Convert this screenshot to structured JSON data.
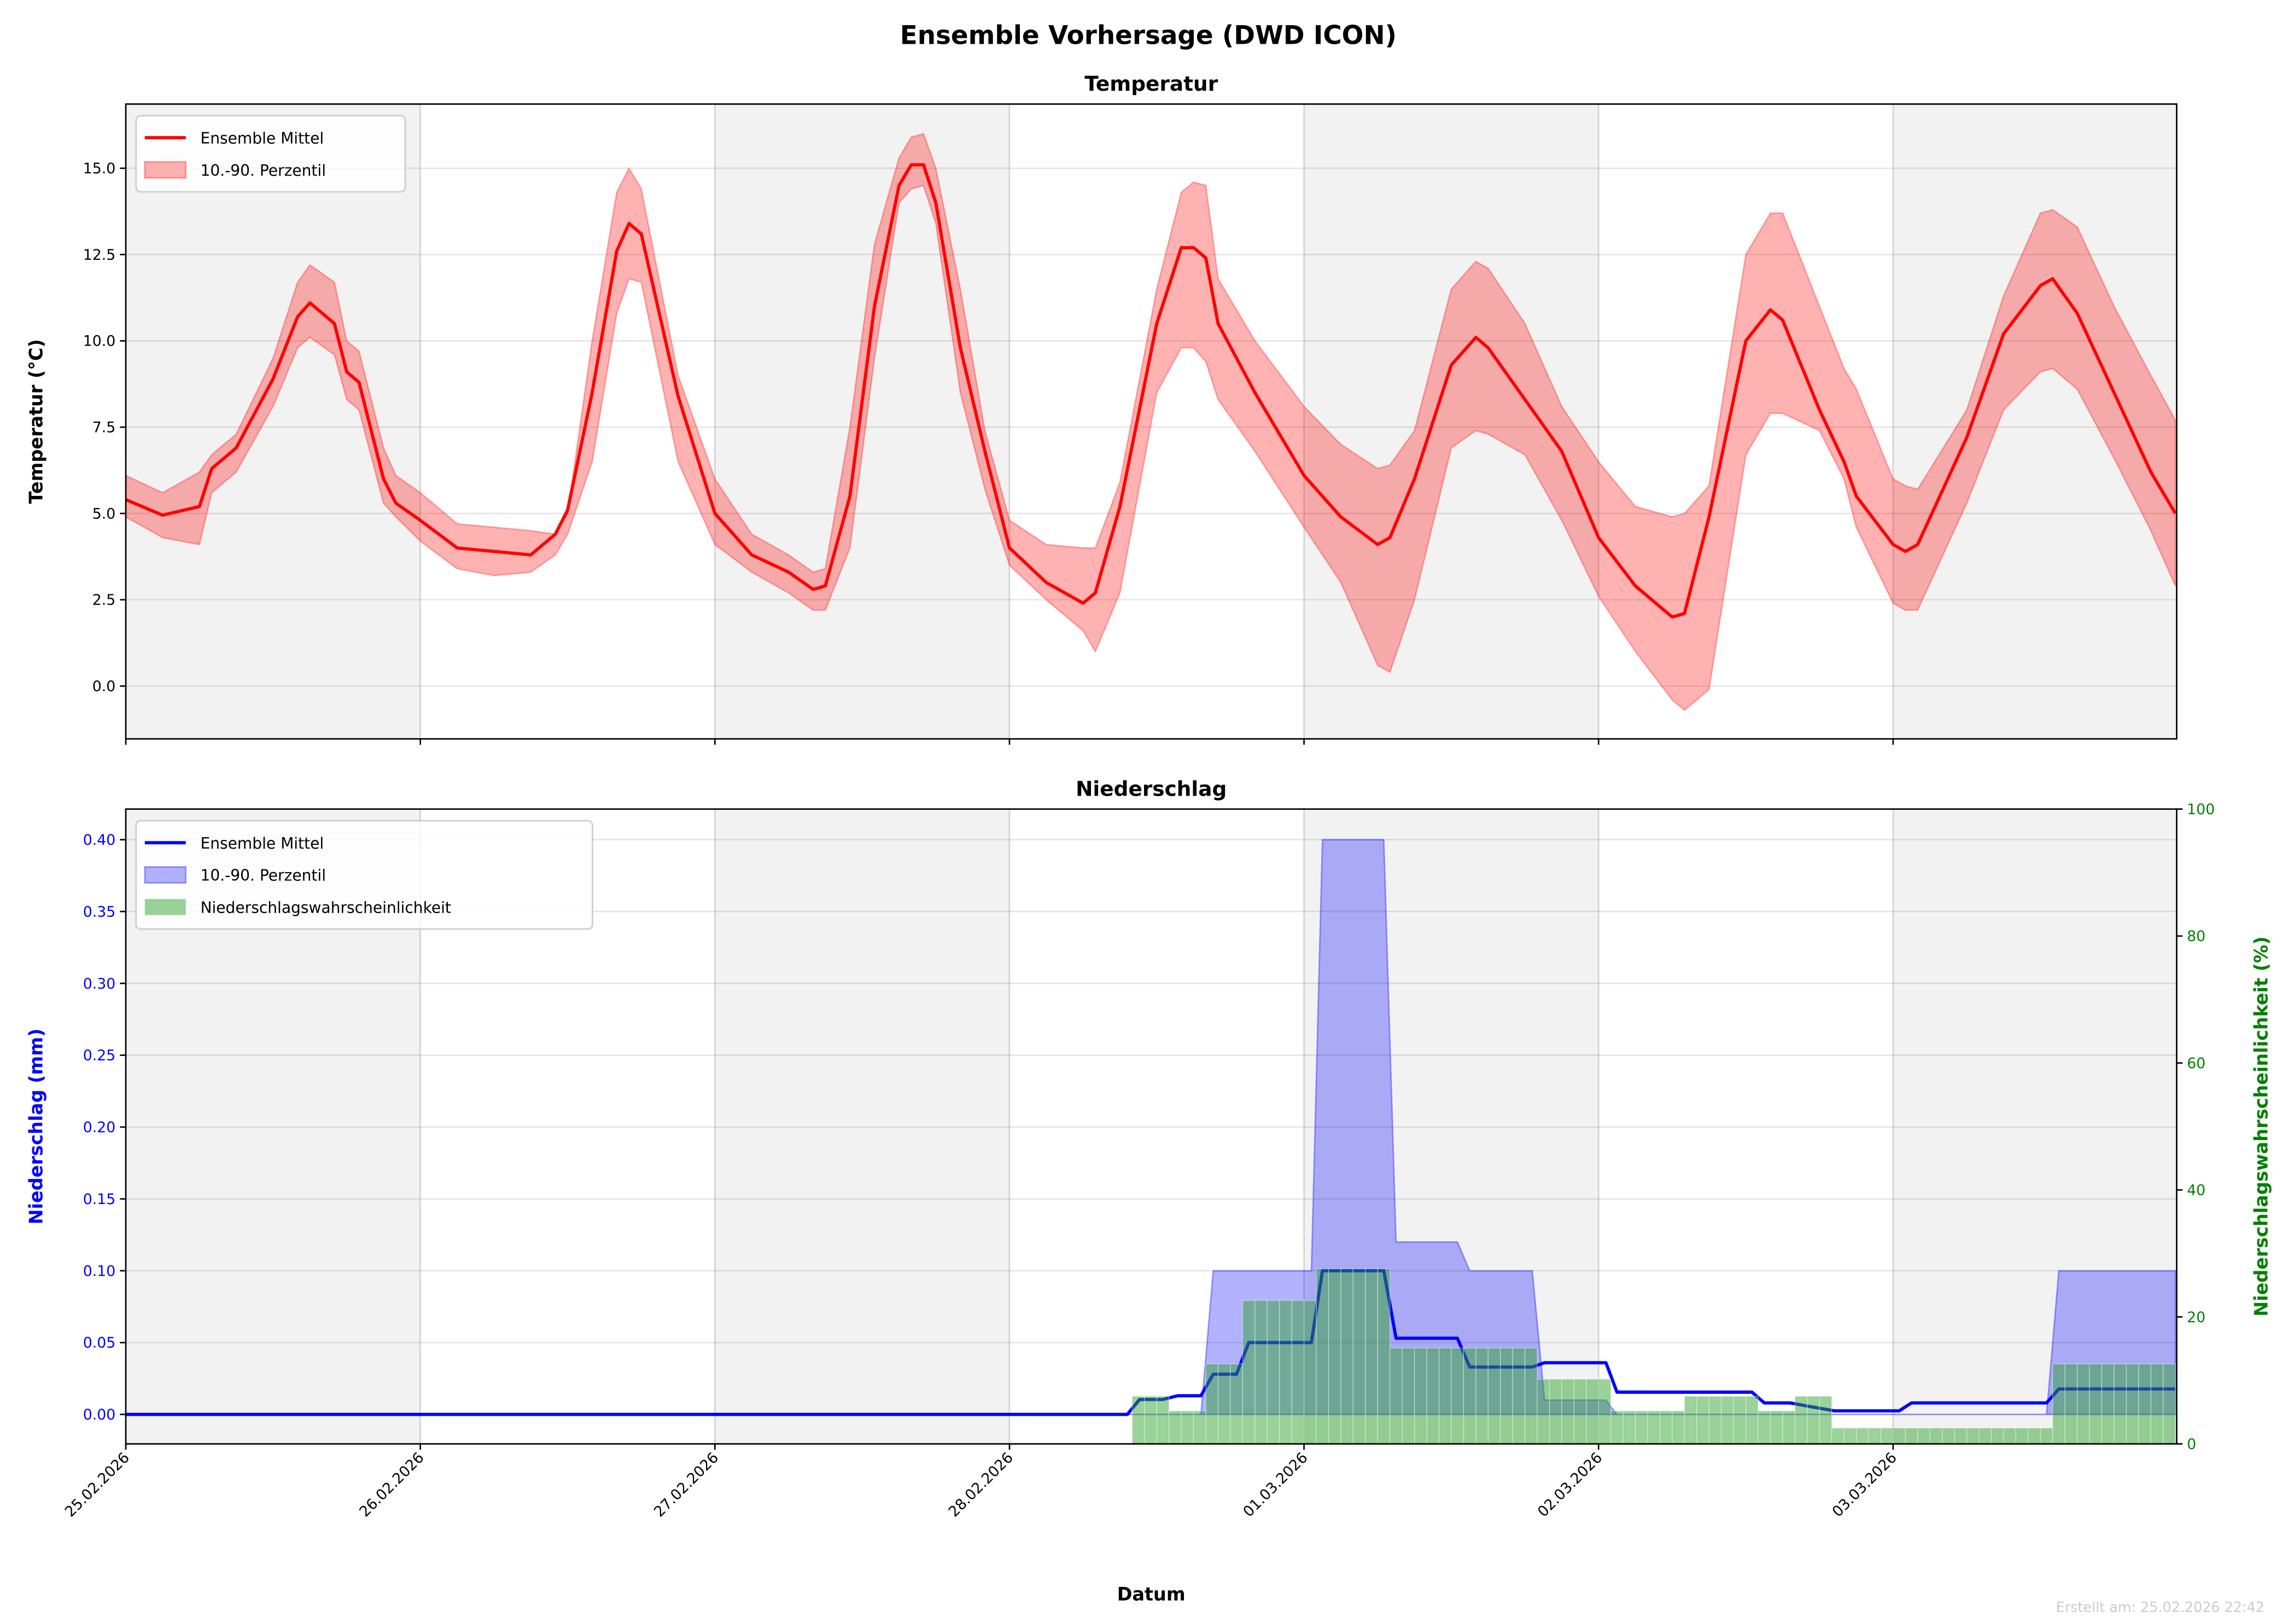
{
  "title": "Ensemble Vorhersage (DWD ICON)",
  "footer": "Erstellt am: 25.02.2026 22:42",
  "x_axis": {
    "label": "Datum",
    "ticks": [
      "25.02.2026",
      "26.02.2026",
      "27.02.2026",
      "28.02.2026",
      "01.03.2026",
      "02.03.2026",
      "03.03.2026"
    ],
    "range_hours": [
      0,
      167
    ],
    "shaded_days": [
      0,
      2,
      4,
      6
    ]
  },
  "colors": {
    "temp": "#ff0000",
    "precip": "#0000ff",
    "prob": "#2ca02c",
    "shade": "#f2f2f2",
    "footer": "#cccccc"
  },
  "chart_data": [
    {
      "type": "line",
      "title": "Temperatur",
      "xlabel": "",
      "ylabel": "Temperatur (°C)",
      "ylim": [
        -1.53,
        16.86
      ],
      "yticks": [
        "0.0",
        "2.5",
        "5.0",
        "7.5",
        "10.0",
        "12.5",
        "15.0"
      ],
      "grid": true,
      "legend": {
        "placement": "top-left",
        "entries": [
          "Ensemble Mittel",
          "10.-90. Perzentil"
        ]
      },
      "x_hours": [
        0,
        3,
        6,
        7,
        9,
        12,
        14,
        15,
        17,
        18,
        19,
        21,
        22,
        24,
        27,
        30,
        33,
        35,
        36,
        38,
        40,
        41,
        42,
        45,
        48,
        51,
        54,
        56,
        57,
        59,
        61,
        63,
        64,
        65,
        66,
        68,
        70,
        72,
        75,
        78,
        79,
        81,
        84,
        86,
        87,
        88,
        89,
        92,
        96,
        99,
        102,
        103,
        105,
        108,
        110,
        111,
        114,
        117,
        120,
        123,
        126,
        127,
        129,
        132,
        134,
        135,
        138,
        140,
        141,
        144,
        145,
        146,
        150,
        153,
        156,
        157,
        159,
        162,
        165,
        167
      ],
      "series": [
        {
          "name": "Ensemble Mittel",
          "values": [
            5.4,
            4.95,
            5.2,
            6.3,
            6.9,
            8.9,
            10.7,
            11.1,
            10.5,
            9.1,
            8.8,
            6.0,
            5.3,
            4.8,
            4.0,
            3.9,
            3.8,
            4.4,
            5.1,
            8.5,
            12.6,
            13.4,
            13.1,
            8.4,
            5.0,
            3.8,
            3.3,
            2.8,
            2.9,
            5.5,
            11.0,
            14.5,
            15.1,
            15.1,
            14.0,
            9.8,
            6.8,
            4.0,
            3.0,
            2.4,
            2.7,
            5.2,
            10.5,
            12.7,
            12.7,
            12.4,
            10.5,
            8.5,
            6.1,
            4.9,
            4.1,
            4.3,
            6.0,
            9.3,
            10.1,
            9.8,
            8.3,
            6.8,
            4.3,
            2.9,
            2.0,
            2.1,
            4.9,
            10.0,
            10.9,
            10.6,
            8.0,
            6.5,
            5.5,
            4.1,
            3.9,
            4.1,
            7.2,
            10.2,
            11.6,
            11.8,
            10.8,
            8.5,
            6.2,
            5.0
          ]
        },
        {
          "name": "P90",
          "values": [
            6.1,
            5.6,
            6.2,
            6.7,
            7.3,
            9.5,
            11.7,
            12.2,
            11.7,
            10.0,
            9.7,
            6.9,
            6.1,
            5.6,
            4.7,
            4.6,
            4.5,
            4.4,
            5.0,
            10.0,
            14.3,
            15.0,
            14.4,
            9.0,
            6.0,
            4.4,
            3.8,
            3.3,
            3.4,
            7.5,
            12.8,
            15.3,
            15.9,
            16.0,
            15.0,
            11.5,
            7.4,
            4.8,
            4.1,
            4.0,
            4.0,
            5.9,
            11.5,
            14.3,
            14.6,
            14.5,
            11.8,
            10.0,
            8.1,
            7.0,
            6.3,
            6.4,
            7.4,
            11.5,
            12.3,
            12.1,
            10.5,
            8.1,
            6.5,
            5.2,
            4.9,
            5.0,
            5.8,
            12.5,
            13.7,
            13.7,
            11.0,
            9.2,
            8.6,
            6.0,
            5.8,
            5.7,
            8.0,
            11.3,
            13.7,
            13.8,
            13.3,
            11.0,
            9.0,
            7.7
          ]
        },
        {
          "name": "P10",
          "values": [
            4.9,
            4.3,
            4.1,
            5.6,
            6.2,
            8.1,
            9.8,
            10.1,
            9.6,
            8.3,
            8.0,
            5.3,
            4.9,
            4.2,
            3.4,
            3.2,
            3.3,
            3.8,
            4.4,
            6.5,
            10.8,
            11.8,
            11.7,
            6.5,
            4.1,
            3.3,
            2.7,
            2.2,
            2.2,
            4.0,
            9.5,
            14.0,
            14.4,
            14.5,
            13.4,
            8.5,
            5.7,
            3.5,
            2.5,
            1.6,
            1.0,
            2.7,
            8.5,
            9.8,
            9.8,
            9.4,
            8.3,
            6.8,
            4.6,
            3.0,
            0.6,
            0.4,
            2.5,
            6.9,
            7.4,
            7.3,
            6.7,
            4.8,
            2.6,
            1.0,
            -0.4,
            -0.7,
            -0.1,
            6.7,
            7.9,
            7.9,
            7.4,
            6.0,
            4.6,
            2.4,
            2.2,
            2.2,
            5.3,
            8.0,
            9.1,
            9.2,
            8.6,
            6.6,
            4.5,
            2.9
          ]
        }
      ]
    },
    {
      "type": "line",
      "title": "Niederschlag",
      "ylabel": "Niederschlag (mm)",
      "ylabel_right": "Niederschlagswahrscheinlichkeit (%)",
      "ylim": [
        -0.0205,
        0.4213
      ],
      "ylim_right": [
        0,
        100
      ],
      "yticks": [
        "0.00",
        "0.05",
        "0.10",
        "0.15",
        "0.20",
        "0.25",
        "0.30",
        "0.35",
        "0.40"
      ],
      "yticks_right": [
        "0",
        "20",
        "40",
        "60",
        "80",
        "100"
      ],
      "grid": true,
      "legend": {
        "placement": "top-left",
        "entries": [
          "Ensemble Mittel",
          "10.-90. Perzentil",
          "Niederschlagswahrscheinlichkeit"
        ]
      },
      "mean": [
        [
          0,
          0
        ],
        [
          81.6,
          0
        ],
        [
          82.6,
          0.0104
        ],
        [
          84.5,
          0.0104
        ],
        [
          85.7,
          0.013
        ],
        [
          87.6,
          0.013
        ],
        [
          88.6,
          0.028
        ],
        [
          90.5,
          0.028
        ],
        [
          91.5,
          0.05
        ],
        [
          96.6,
          0.05
        ],
        [
          97.5,
          0.1
        ],
        [
          102.5,
          0.1
        ],
        [
          103.5,
          0.053
        ],
        [
          108.5,
          0.053
        ],
        [
          109.5,
          0.033
        ],
        [
          114.6,
          0.033
        ],
        [
          115.6,
          0.036
        ],
        [
          120.6,
          0.036
        ],
        [
          121.5,
          0.0155
        ],
        [
          132.5,
          0.0155
        ],
        [
          133.5,
          0.008
        ],
        [
          135.6,
          0.008
        ],
        [
          139.2,
          0.0025
        ],
        [
          144.5,
          0.0025
        ],
        [
          145.5,
          0.008
        ],
        [
          156.5,
          0.008
        ],
        [
          157.5,
          0.0177
        ],
        [
          167,
          0.0177
        ]
      ],
      "p90": [
        [
          0,
          0
        ],
        [
          87.6,
          0
        ],
        [
          88.6,
          0.1
        ],
        [
          96.6,
          0.1
        ],
        [
          97.5,
          0.4
        ],
        [
          102.5,
          0.4
        ],
        [
          103.5,
          0.12
        ],
        [
          108.5,
          0.12
        ],
        [
          109.5,
          0.1
        ],
        [
          114.6,
          0.1
        ],
        [
          115.6,
          0.01
        ],
        [
          120.6,
          0.01
        ],
        [
          121.5,
          0
        ],
        [
          156.5,
          0
        ],
        [
          157.5,
          0.1
        ],
        [
          167,
          0.1
        ]
      ],
      "p10": [
        [
          0,
          0
        ],
        [
          167,
          0
        ]
      ],
      "probability_segments": [
        [
          82,
          85,
          7.5
        ],
        [
          85,
          88,
          5.2
        ],
        [
          88,
          91,
          12.6
        ],
        [
          91,
          97,
          22.6
        ],
        [
          97,
          103,
          27.6
        ],
        [
          103,
          115,
          15.1
        ],
        [
          115,
          121,
          10.2
        ],
        [
          121,
          127,
          5.2
        ],
        [
          127,
          133,
          7.5
        ],
        [
          133,
          136,
          5.2
        ],
        [
          136,
          139,
          7.5
        ],
        [
          139,
          157,
          2.5
        ],
        [
          157,
          167,
          12.6
        ]
      ]
    }
  ]
}
